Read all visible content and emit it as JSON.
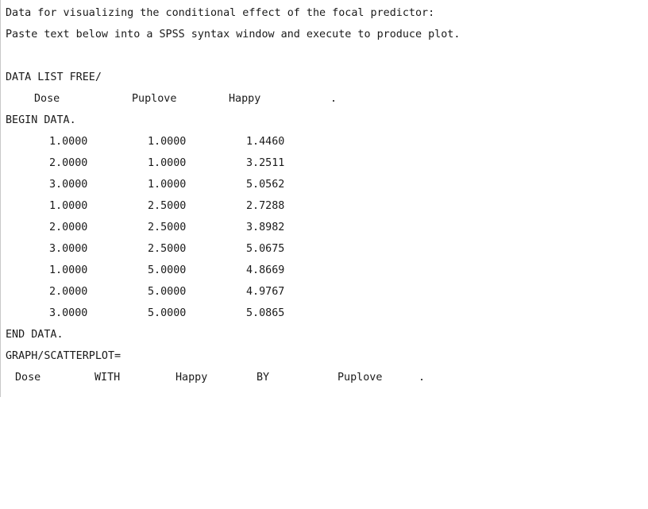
{
  "intro": {
    "line1": "Data for visualizing the conditional effect of the focal predictor:",
    "line2": "Paste text below into a SPSS syntax window and execute to produce plot."
  },
  "syntax": {
    "data_list": "DATA LIST FREE/",
    "variables": [
      "Dose",
      "Puplove",
      "Happy",
      "."
    ],
    "begin_data": "BEGIN DATA.",
    "rows": [
      [
        "1.0000",
        "1.0000",
        "1.4460"
      ],
      [
        "2.0000",
        "1.0000",
        "3.2511"
      ],
      [
        "3.0000",
        "1.0000",
        "5.0562"
      ],
      [
        "1.0000",
        "2.5000",
        "2.7288"
      ],
      [
        "2.0000",
        "2.5000",
        "3.8982"
      ],
      [
        "3.0000",
        "2.5000",
        "5.0675"
      ],
      [
        "1.0000",
        "5.0000",
        "4.8669"
      ],
      [
        "2.0000",
        "5.0000",
        "4.9767"
      ],
      [
        "3.0000",
        "5.0000",
        "5.0865"
      ]
    ],
    "end_data": "END DATA.",
    "graph": "GRAPH/SCATTERPLOT=",
    "graph_spec": [
      "Dose",
      "WITH",
      "Happy",
      "BY",
      "Puplove",
      "."
    ]
  }
}
